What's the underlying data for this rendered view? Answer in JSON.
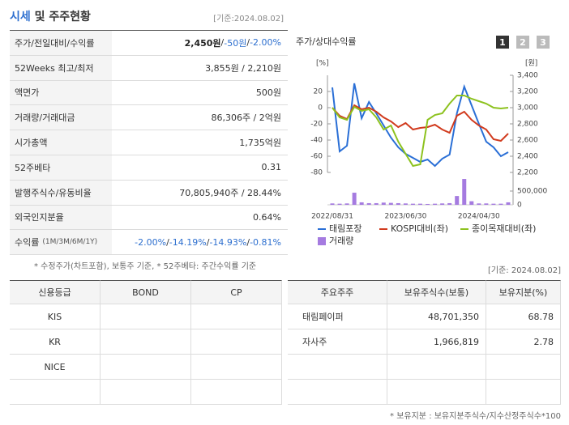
{
  "header": {
    "title": [
      "시세",
      " 및 주주현황"
    ],
    "date": "[기준:2024.08.02]"
  },
  "quote_table": {
    "rows": [
      {
        "label": "주가/전일대비/수익률",
        "value": [
          "2,450원",
          " / ",
          "-50원",
          " / ",
          "-2.00%"
        ]
      },
      {
        "label": "52Weeks 최고/최저",
        "value": [
          "3,855원 / 2,210원"
        ]
      },
      {
        "label": "액면가",
        "value": [
          "500원"
        ]
      },
      {
        "label": "거래량/거래대금",
        "value": [
          "86,306주 / 2억원"
        ]
      },
      {
        "label": "시가총액",
        "value": [
          "1,735억원"
        ]
      },
      {
        "label": "52주베타",
        "value": [
          "0.31"
        ]
      },
      {
        "label": "발행주식수/유동비율",
        "value": [
          "70,805,940주 / 28.44%"
        ]
      },
      {
        "label": "외국인지분율",
        "value": [
          "0.64%"
        ]
      },
      {
        "label": "수익률",
        "label_note": "(1M/3M/6M/1Y)",
        "value": [
          "-2.00%",
          " / ",
          "-14.19%",
          " / ",
          "-14.93%",
          " / ",
          "-0.81%"
        ]
      }
    ]
  },
  "chart_panel": {
    "title": "주가/상대수익률",
    "buttons": [
      "1",
      "2",
      "3"
    ]
  },
  "chart_data": {
    "type": "line",
    "categories": [
      "2022/08/31",
      null,
      null,
      null,
      null,
      null,
      null,
      null,
      null,
      null,
      "2023/06/30",
      null,
      null,
      null,
      null,
      null,
      null,
      null,
      null,
      null,
      "2024/04/30",
      null,
      null,
      null,
      null
    ],
    "series": [
      {
        "name": "태림포장",
        "color": "#2a6fd6",
        "axis": "y2",
        "values": [
          3250,
          2460,
          2530,
          3300,
          2870,
          3070,
          2930,
          2780,
          2630,
          2510,
          2430,
          2380,
          2330,
          2360,
          2280,
          2370,
          2420,
          2930,
          3260,
          3030,
          2800,
          2580,
          2510,
          2400,
          2450
        ]
      },
      {
        "name": "KOSPI대비(좌)",
        "color": "#d13b1e",
        "values": [
          0,
          -10,
          -14,
          3,
          -2,
          0,
          -5,
          -12,
          -17,
          -24,
          -19,
          -27,
          -25,
          -24,
          -21,
          -27,
          -31,
          -10,
          -5,
          -15,
          -22,
          -27,
          -39,
          -41,
          -32
        ]
      },
      {
        "name": "종이목재대비(좌)",
        "color": "#8dc21f",
        "values": [
          0,
          -12,
          -15,
          1,
          -4,
          -2,
          -12,
          -27,
          -22,
          -42,
          -57,
          -72,
          -70,
          -15,
          -9,
          -7,
          5,
          15,
          15,
          11,
          8,
          5,
          0,
          -1,
          0
        ]
      },
      {
        "name": "거래량",
        "color": "#a57be0",
        "axis": "y3",
        "type": "bar",
        "values": [
          50000,
          40000,
          50000,
          440000,
          90000,
          60000,
          60000,
          80000,
          70000,
          60000,
          50000,
          40000,
          40000,
          30000,
          40000,
          50000,
          60000,
          320000,
          940000,
          130000,
          50000,
          50000,
          40000,
          40000,
          90000
        ]
      }
    ],
    "y_unit": "[%]",
    "ylim": [
      -80,
      40
    ],
    "yticks": [
      20,
      0,
      -20,
      -40,
      -60,
      -80
    ],
    "y2_unit": "[원]",
    "y2lim": [
      2200,
      3400
    ],
    "y2ticks": [
      {
        "value": 3400,
        "label": "3,400"
      },
      {
        "value": 3200,
        "label": "3,200"
      },
      {
        "value": 3000,
        "label": "3,000"
      },
      {
        "value": 2800,
        "label": "2,800"
      },
      {
        "value": 2600,
        "label": "2,600"
      },
      {
        "value": 2400,
        "label": "2,400"
      },
      {
        "value": 2200,
        "label": "2,200"
      }
    ],
    "y3lim": [
      0,
      1000000
    ],
    "y3ticks": [
      {
        "value": 500000,
        "label": "500,000"
      },
      0
    ]
  },
  "footnote": "* 수정주가(차트포함), 보통주 기준, * 52주베타: 주간수익률 기준",
  "date2": "[기준: 2024.08.02]",
  "credit_table": {
    "headers": [
      "신용등급",
      "BOND",
      "CP"
    ],
    "rows": [
      [
        "KIS"
      ],
      [
        "KR"
      ],
      [
        "NICE"
      ]
    ]
  },
  "holder_table": {
    "headers": [
      "주요주주",
      "보유주식수(보통)",
      "보유지분(%)"
    ],
    "rows": [
      [
        "태림페이퍼",
        "48,701,350",
        "68.78"
      ],
      [
        "자사주",
        "1,966,819",
        "2.78"
      ]
    ]
  },
  "holder_note": "* 보유지분 : 보유지분주식수/지수산정주식수*100"
}
